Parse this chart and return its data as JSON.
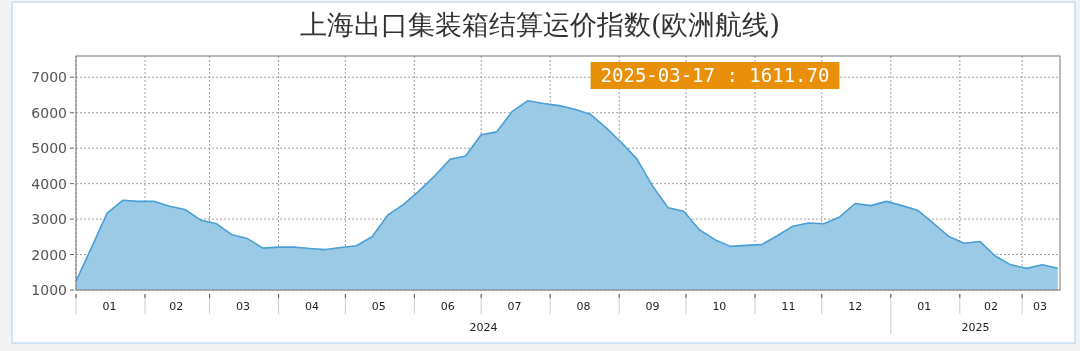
{
  "chart_data": {
    "type": "area",
    "title": "上海出口集装箱结算运价指数(欧洲航线)",
    "x": [
      "2024-01-01",
      "2024-01-08",
      "2024-01-15",
      "2024-01-22",
      "2024-01-29",
      "2024-02-05",
      "2024-02-12",
      "2024-02-19",
      "2024-02-26",
      "2024-03-04",
      "2024-03-11",
      "2024-03-18",
      "2024-03-25",
      "2024-04-01",
      "2024-04-08",
      "2024-04-15",
      "2024-04-22",
      "2024-04-29",
      "2024-05-06",
      "2024-05-13",
      "2024-05-20",
      "2024-05-27",
      "2024-06-03",
      "2024-06-10",
      "2024-06-17",
      "2024-06-24",
      "2024-07-01",
      "2024-07-08",
      "2024-07-15",
      "2024-07-22",
      "2024-07-29",
      "2024-08-05",
      "2024-08-12",
      "2024-08-19",
      "2024-08-26",
      "2024-09-02",
      "2024-09-09",
      "2024-09-16",
      "2024-09-23",
      "2024-09-30",
      "2024-10-07",
      "2024-10-14",
      "2024-10-21",
      "2024-10-28",
      "2024-11-04",
      "2024-11-11",
      "2024-11-18",
      "2024-11-25",
      "2024-12-02",
      "2024-12-09",
      "2024-12-16",
      "2024-12-23",
      "2024-12-30",
      "2025-01-06",
      "2025-01-13",
      "2025-01-20",
      "2025-01-27",
      "2025-02-03",
      "2025-02-10",
      "2025-02-17",
      "2025-02-24",
      "2025-03-03",
      "2025-03-10",
      "2025-03-17"
    ],
    "series": [
      {
        "color": "#4a9fd4",
        "values": [
          1250,
          2200,
          3170,
          3530,
          3500,
          3500,
          3360,
          3270,
          2970,
          2870,
          2560,
          2450,
          2180,
          2210,
          2210,
          2170,
          2140,
          2200,
          2250,
          2500,
          3110,
          3410,
          3790,
          4210,
          4690,
          4780,
          5380,
          5460,
          6040,
          6340,
          6260,
          6200,
          6100,
          5960,
          5580,
          5160,
          4690,
          3930,
          3320,
          3220,
          2700,
          2420,
          2230,
          2260,
          2280,
          2530,
          2800,
          2890,
          2870,
          3060,
          3440,
          3380,
          3500,
          3380,
          3250,
          2890,
          2510,
          2320,
          2370,
          1950,
          1710,
          1610,
          1710,
          1611.7
        ]
      }
    ],
    "xlim": [
      "2024-01-01",
      "2025-03-18"
    ],
    "xticks": [
      {
        "value": "2024-01-01",
        "label": null
      },
      {
        "value": "2024-01-16",
        "label": "01"
      },
      {
        "value": "2024-02-01",
        "label": null
      },
      {
        "value": "2024-02-15",
        "label": "02"
      },
      {
        "value": "2024-03-01",
        "label": null
      },
      {
        "value": "2024-03-16",
        "label": "03"
      },
      {
        "value": "2024-04-01",
        "label": null
      },
      {
        "value": "2024-04-16",
        "label": "04"
      },
      {
        "value": "2024-05-01",
        "label": null
      },
      {
        "value": "2024-05-16",
        "label": "05"
      },
      {
        "value": "2024-06-01",
        "label": null
      },
      {
        "value": "2024-06-16",
        "label": "06"
      },
      {
        "value": "2024-07-01",
        "label": null
      },
      {
        "value": "2024-07-16",
        "label": "07"
      },
      {
        "value": "2024-08-01",
        "label": null
      },
      {
        "value": "2024-08-16",
        "label": "08"
      },
      {
        "value": "2024-09-01",
        "label": null
      },
      {
        "value": "2024-09-16",
        "label": "09"
      },
      {
        "value": "2024-10-01",
        "label": null
      },
      {
        "value": "2024-10-16",
        "label": "10"
      },
      {
        "value": "2024-11-01",
        "label": null
      },
      {
        "value": "2024-11-16",
        "label": "11"
      },
      {
        "value": "2024-12-01",
        "label": null
      },
      {
        "value": "2024-12-16",
        "label": "12"
      },
      {
        "value": "2025-01-01",
        "label": null
      },
      {
        "value": "2025-01-16",
        "label": "01"
      },
      {
        "value": "2025-02-01",
        "label": null
      },
      {
        "value": "2025-02-15",
        "label": "02"
      },
      {
        "value": "2025-03-01",
        "label": null
      },
      {
        "value": "2025-03-09",
        "label": "03"
      }
    ],
    "ylim": [
      1000,
      7600
    ],
    "yticks": [
      1000,
      2000,
      3000,
      4000,
      5000,
      6000,
      7000
    ],
    "grid": true,
    "annotations": [
      "2024",
      "2025",
      "2025-03-17 : 1611.70"
    ]
  }
}
